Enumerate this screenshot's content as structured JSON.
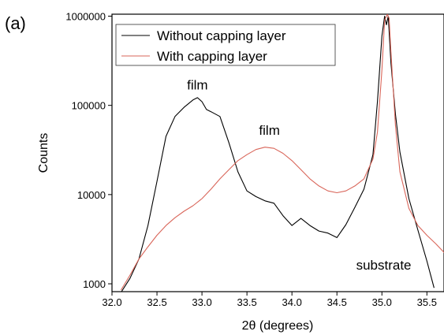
{
  "panel_label": "(a)",
  "chart_data": {
    "type": "line",
    "xlabel": "2θ (degrees)",
    "ylabel": "Counts",
    "xlim": [
      32.0,
      35.7
    ],
    "ylim": [
      800,
      1000000
    ],
    "yscale": "log",
    "grid": false,
    "legend_placement": "top-left",
    "x_ticks": [
      "32.0",
      "32.5",
      "33.0",
      "33.5",
      "34.0",
      "34.5",
      "35.0",
      "35.5"
    ],
    "x_tick_values": [
      32.0,
      32.5,
      33.0,
      33.5,
      34.0,
      34.5,
      35.0,
      35.5
    ],
    "y_ticks": [
      "1000",
      "10000",
      "100000",
      "1000000"
    ],
    "y_tick_values": [
      1000,
      10000,
      100000,
      1000000
    ],
    "series": [
      {
        "name": "Without capping layer",
        "color": "#000000",
        "x": [
          32.1,
          32.2,
          32.3,
          32.4,
          32.5,
          32.6,
          32.7,
          32.8,
          32.9,
          32.95,
          33.0,
          33.05,
          33.1,
          33.2,
          33.3,
          33.4,
          33.5,
          33.6,
          33.7,
          33.8,
          33.9,
          34.0,
          34.1,
          34.2,
          34.3,
          34.4,
          34.5,
          34.6,
          34.7,
          34.8,
          34.9,
          34.95,
          35.0,
          35.03,
          35.05,
          35.07,
          35.1,
          35.15,
          35.2,
          35.3,
          35.4,
          35.5,
          35.58
        ],
        "y": [
          800,
          1150,
          1900,
          4500,
          14000,
          45000,
          75000,
          95000,
          115000,
          122000,
          110000,
          90000,
          85000,
          75000,
          38000,
          18000,
          11000,
          9500,
          8500,
          8000,
          5800,
          4500,
          5400,
          4500,
          3900,
          3700,
          3300,
          4600,
          7200,
          11500,
          28000,
          110000,
          600000,
          1000000,
          800000,
          1000000,
          300000,
          80000,
          30000,
          9000,
          4000,
          1800,
          900
        ]
      },
      {
        "name": "With capping layer",
        "color": "#d9665a",
        "x": [
          32.1,
          32.2,
          32.3,
          32.4,
          32.5,
          32.6,
          32.7,
          32.8,
          32.9,
          33.0,
          33.1,
          33.2,
          33.3,
          33.4,
          33.5,
          33.6,
          33.7,
          33.8,
          33.9,
          34.0,
          34.1,
          34.2,
          34.3,
          34.4,
          34.5,
          34.6,
          34.7,
          34.8,
          34.9,
          34.95,
          35.0,
          35.03,
          35.06,
          35.08,
          35.1,
          35.15,
          35.2,
          35.3,
          35.4,
          35.5,
          35.6,
          35.7
        ],
        "y": [
          850,
          1250,
          1900,
          2600,
          3500,
          4500,
          5500,
          6500,
          7500,
          9000,
          11500,
          15000,
          19000,
          24000,
          28000,
          32000,
          34000,
          33000,
          29000,
          24000,
          19000,
          15000,
          12500,
          11000,
          10500,
          11000,
          12500,
          15000,
          25000,
          50000,
          250000,
          900000,
          1050000,
          950000,
          400000,
          60000,
          18000,
          7000,
          4500,
          3500,
          2800,
          2200
        ]
      }
    ],
    "annotations": [
      {
        "text": "film",
        "x": 32.95,
        "y": 150000
      },
      {
        "text": "film",
        "x": 33.75,
        "y": 47000
      },
      {
        "text": "substrate",
        "x": 35.02,
        "y": 1450
      }
    ]
  }
}
